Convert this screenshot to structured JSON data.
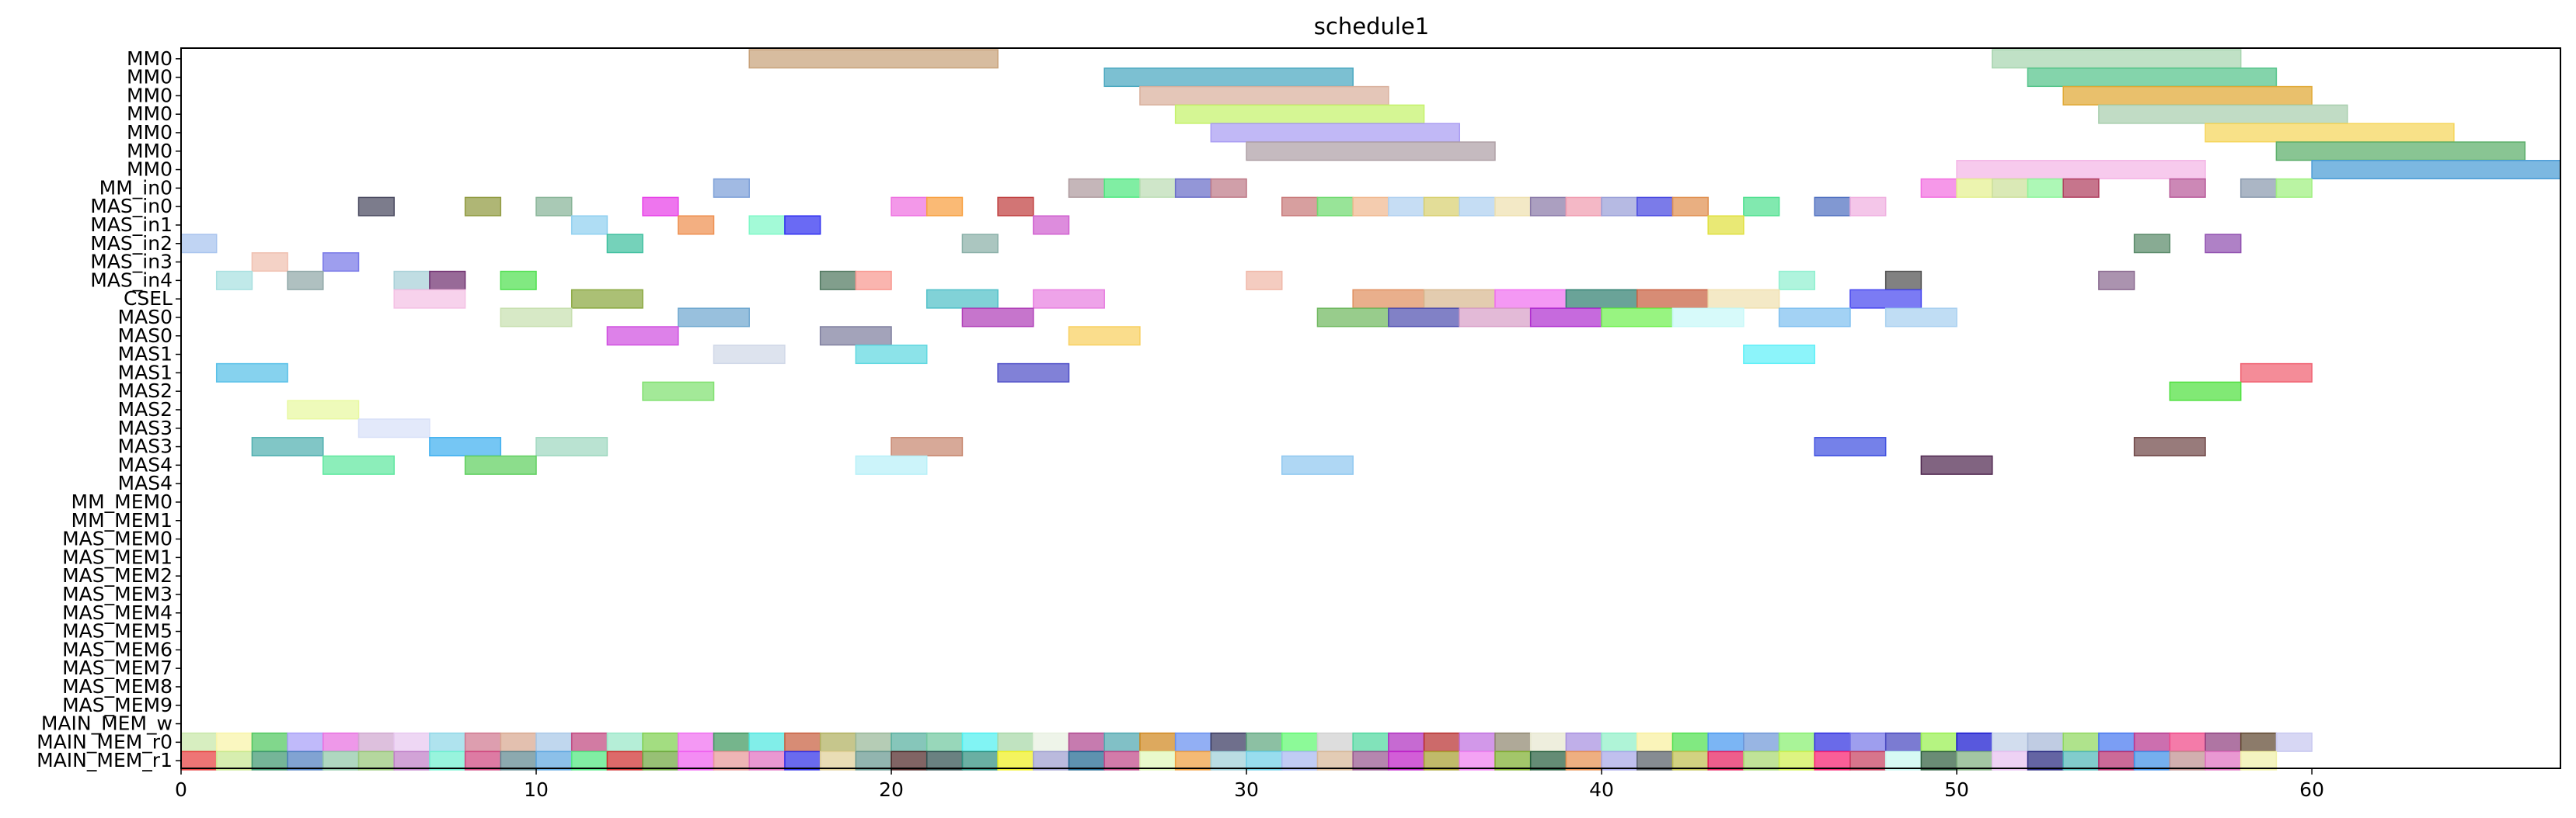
{
  "chart_data": {
    "type": "gantt",
    "title": "schedule1",
    "xlim": [
      0,
      67
    ],
    "xticks": [
      0,
      10,
      20,
      30,
      40,
      50,
      60
    ],
    "lanes": [
      "MM0",
      "MM0",
      "MM0",
      "MM0",
      "MM0",
      "MM0",
      "MM0",
      "MM_in0",
      "MAS_in0",
      "MAS_in1",
      "MAS_in2",
      "MAS_in3",
      "MAS_in4",
      "CSEL",
      "MAS0",
      "MAS0",
      "MAS1",
      "MAS1",
      "MAS2",
      "MAS2",
      "MAS3",
      "MAS3",
      "MAS4",
      "MAS4",
      "MM_MEM0",
      "MM_MEM1",
      "MAS_MEM0",
      "MAS_MEM1",
      "MAS_MEM2",
      "MAS_MEM3",
      "MAS_MEM4",
      "MAS_MEM5",
      "MAS_MEM6",
      "MAS_MEM7",
      "MAS_MEM8",
      "MAS_MEM9",
      "MAIN_MEM_w",
      "MAIN_MEM_r0",
      "MAIN_MEM_r1"
    ],
    "tasks": [
      [
        0,
        16,
        23,
        "#C8A27A"
      ],
      [
        0,
        51,
        58,
        "#A8D5B0"
      ],
      [
        1,
        26,
        33,
        "#4AA8C0"
      ],
      [
        1,
        52,
        59,
        "#55C48A"
      ],
      [
        2,
        27,
        34,
        "#D9B09C"
      ],
      [
        2,
        53,
        60,
        "#E0A833"
      ],
      [
        3,
        28,
        35,
        "#C5F26B"
      ],
      [
        3,
        54,
        61,
        "#A9CFAE"
      ],
      [
        4,
        29,
        36,
        "#A99CF2"
      ],
      [
        4,
        57,
        64,
        "#F5D55A"
      ],
      [
        5,
        30,
        37,
        "#AFA0A6"
      ],
      [
        5,
        59,
        66,
        "#5BAE6A"
      ],
      [
        6,
        50,
        57,
        "#F4B5E6"
      ],
      [
        6,
        60,
        67,
        "#4A9CD6"
      ],
      [
        7,
        15,
        16,
        "#7DA0D8"
      ],
      [
        7,
        25,
        26,
        "#AE9A9E"
      ],
      [
        7,
        26,
        27,
        "#4FE880"
      ],
      [
        7,
        27,
        28,
        "#BCDDB4"
      ],
      [
        7,
        28,
        29,
        "#6A6EC8"
      ],
      [
        7,
        29,
        30,
        "#BE7A88"
      ],
      [
        7,
        49,
        50,
        "#F270E0"
      ],
      [
        7,
        50,
        51,
        "#E4F090"
      ],
      [
        7,
        51,
        52,
        "#CCE09A"
      ],
      [
        7,
        52,
        53,
        "#8EF59A"
      ],
      [
        7,
        53,
        54,
        "#B04060"
      ],
      [
        7,
        56,
        57,
        "#B85A9A"
      ],
      [
        7,
        58,
        59,
        "#8A9AAE"
      ],
      [
        7,
        59,
        60,
        "#A0F080"
      ],
      [
        8,
        5,
        6,
        "#4A4A60"
      ],
      [
        8,
        8,
        9,
        "#909A40"
      ],
      [
        8,
        10,
        11,
        "#88B498"
      ],
      [
        8,
        13,
        14,
        "#E840E8"
      ],
      [
        8,
        20,
        21,
        "#EE70E0"
      ],
      [
        8,
        21,
        22,
        "#F8A040"
      ],
      [
        8,
        23,
        24,
        "#C04040"
      ],
      [
        8,
        31,
        32,
        "#C87A7A"
      ],
      [
        8,
        32,
        33,
        "#70DA70"
      ],
      [
        8,
        33,
        34,
        "#F0B890"
      ],
      [
        8,
        34,
        35,
        "#B0D0F0"
      ],
      [
        8,
        35,
        36,
        "#D8D070"
      ],
      [
        8,
        36,
        37,
        "#AED0F0"
      ],
      [
        8,
        37,
        38,
        "#EEE0B0"
      ],
      [
        8,
        38,
        39,
        "#8A7AA8"
      ],
      [
        8,
        39,
        40,
        "#F09CB0"
      ],
      [
        8,
        40,
        41,
        "#9AA0D8"
      ],
      [
        8,
        41,
        42,
        "#4848E0"
      ],
      [
        8,
        42,
        43,
        "#E09050"
      ],
      [
        8,
        44,
        45,
        "#50E090"
      ],
      [
        8,
        46,
        47,
        "#5070C0"
      ],
      [
        8,
        47,
        48,
        "#F0B0E0"
      ],
      [
        9,
        11,
        12,
        "#90D0F0"
      ],
      [
        9,
        14,
        15,
        "#EE9050"
      ],
      [
        9,
        16,
        17,
        "#80F8C8"
      ],
      [
        9,
        17,
        18,
        "#3030F0"
      ],
      [
        9,
        24,
        25,
        "#D060D0"
      ],
      [
        9,
        43,
        44,
        "#E0E040"
      ],
      [
        10,
        0,
        1,
        "#A8C4EE"
      ],
      [
        10,
        12,
        13,
        "#40C0A0"
      ],
      [
        10,
        22,
        23,
        "#8AB0A8"
      ],
      [
        10,
        55,
        56,
        "#5A8A6A"
      ],
      [
        10,
        57,
        58,
        "#9050B0"
      ],
      [
        11,
        2,
        3,
        "#F0C0B0"
      ],
      [
        11,
        4,
        5,
        "#7878E8"
      ],
      [
        12,
        1,
        2,
        "#A8E0E0"
      ],
      [
        12,
        3,
        4,
        "#90A8A8"
      ],
      [
        12,
        6,
        7,
        "#A8D0D8"
      ],
      [
        12,
        7,
        8,
        "#703070"
      ],
      [
        12,
        9,
        10,
        "#50E050"
      ],
      [
        12,
        18,
        19,
        "#507860"
      ],
      [
        12,
        19,
        20,
        "#F89890"
      ],
      [
        12,
        30,
        31,
        "#F0B8A8"
      ],
      [
        12,
        45,
        46,
        "#90F0D0"
      ],
      [
        12,
        48,
        49,
        "#505050"
      ],
      [
        12,
        54,
        55,
        "#8A6A90"
      ],
      [
        13,
        6,
        8,
        "#F4C0E4"
      ],
      [
        13,
        11,
        13,
        "#8AA840"
      ],
      [
        13,
        21,
        23,
        "#50C0C8"
      ],
      [
        13,
        24,
        26,
        "#E880E0"
      ],
      [
        13,
        33,
        35,
        "#E09060"
      ],
      [
        13,
        35,
        37,
        "#D8B890"
      ],
      [
        13,
        37,
        39,
        "#F070F0"
      ],
      [
        13,
        39,
        41,
        "#308070"
      ],
      [
        13,
        41,
        43,
        "#C86040"
      ],
      [
        13,
        43,
        45,
        "#F0E0B0"
      ],
      [
        13,
        47,
        49,
        "#4848F0"
      ],
      [
        14,
        9,
        11,
        "#C8E0B0"
      ],
      [
        14,
        14,
        16,
        "#70A8D0"
      ],
      [
        14,
        22,
        24,
        "#B040B8"
      ],
      [
        14,
        32,
        34,
        "#70B860"
      ],
      [
        14,
        34,
        36,
        "#5050B0"
      ],
      [
        14,
        36,
        38,
        "#D8A0C8"
      ],
      [
        14,
        38,
        40,
        "#B030D0"
      ],
      [
        14,
        40,
        42,
        "#70F050"
      ],
      [
        14,
        42,
        44,
        "#C8F8F8"
      ],
      [
        14,
        45,
        47,
        "#80C0F0"
      ],
      [
        14,
        48,
        50,
        "#A8D0F0"
      ],
      [
        15,
        12,
        14,
        "#D050E0"
      ],
      [
        15,
        18,
        20,
        "#8080A0"
      ],
      [
        15,
        25,
        27,
        "#F8D060"
      ],
      [
        16,
        15,
        17,
        "#D0D8E8"
      ],
      [
        16,
        19,
        21,
        "#60D8E0"
      ],
      [
        16,
        44,
        46,
        "#60F0F8"
      ],
      [
        17,
        1,
        3,
        "#58C0E8"
      ],
      [
        17,
        23,
        25,
        "#5050C8"
      ],
      [
        17,
        58,
        60,
        "#F06070"
      ],
      [
        18,
        13,
        15,
        "#80E070"
      ],
      [
        18,
        56,
        58,
        "#50E040"
      ],
      [
        19,
        3,
        5,
        "#E8F8A0"
      ],
      [
        20,
        5,
        7,
        "#D8E0F8"
      ],
      [
        21,
        2,
        4,
        "#50B0B0"
      ],
      [
        21,
        7,
        9,
        "#40B0F0"
      ],
      [
        21,
        10,
        12,
        "#A0D8C0"
      ],
      [
        21,
        20,
        22,
        "#C88870"
      ],
      [
        21,
        46,
        48,
        "#4050E0"
      ],
      [
        21,
        55,
        57,
        "#704848"
      ],
      [
        22,
        4,
        6,
        "#60E8A0"
      ],
      [
        22,
        8,
        10,
        "#60D060"
      ],
      [
        22,
        19,
        21,
        "#B8F0F8"
      ],
      [
        22,
        31,
        33,
        "#90C8F0"
      ],
      [
        22,
        49,
        51,
        "#502850"
      ],
      [
        37,
        0,
        1,
        "#C8E8A8"
      ],
      [
        37,
        1,
        2,
        "#F8F4A8"
      ],
      [
        37,
        2,
        3,
        "#50C860"
      ],
      [
        37,
        3,
        4,
        "#A8A0F8"
      ],
      [
        37,
        4,
        5,
        "#E870E0"
      ],
      [
        37,
        5,
        6,
        "#D0A8D0"
      ],
      [
        37,
        6,
        7,
        "#E8C8F0"
      ],
      [
        37,
        7,
        8,
        "#90D8E8"
      ],
      [
        37,
        8,
        9,
        "#D07890"
      ],
      [
        37,
        9,
        10,
        "#D8A890"
      ],
      [
        37,
        10,
        11,
        "#A8C8E8"
      ],
      [
        37,
        11,
        12,
        "#C04880"
      ],
      [
        37,
        12,
        13,
        "#98E8C8"
      ],
      [
        37,
        13,
        14,
        "#80D050"
      ],
      [
        37,
        14,
        15,
        "#F070F0"
      ],
      [
        37,
        15,
        16,
        "#409860"
      ],
      [
        37,
        16,
        17,
        "#50E8E0"
      ],
      [
        37,
        17,
        18,
        "#C86040"
      ],
      [
        37,
        18,
        19,
        "#B0B060"
      ],
      [
        37,
        19,
        20,
        "#98B898"
      ],
      [
        37,
        20,
        21,
        "#58B0A0"
      ],
      [
        37,
        21,
        22,
        "#70C8A0"
      ],
      [
        37,
        22,
        23,
        "#50F0F0"
      ],
      [
        37,
        23,
        24,
        "#A8D8A8"
      ],
      [
        37,
        24,
        25,
        "#E8F0E0"
      ],
      [
        37,
        25,
        26,
        "#B04890"
      ],
      [
        37,
        26,
        27,
        "#50A8B0"
      ],
      [
        37,
        27,
        28,
        "#D08820"
      ],
      [
        37,
        28,
        29,
        "#6890F0"
      ],
      [
        37,
        29,
        30,
        "#383860"
      ],
      [
        37,
        30,
        31,
        "#60A880"
      ],
      [
        37,
        31,
        32,
        "#60F870"
      ],
      [
        37,
        32,
        33,
        "#D0D0D0"
      ],
      [
        37,
        33,
        34,
        "#50D8A0"
      ],
      [
        37,
        34,
        35,
        "#B030C0"
      ],
      [
        37,
        35,
        36,
        "#B83030"
      ],
      [
        37,
        36,
        37,
        "#C070E0"
      ],
      [
        37,
        37,
        38,
        "#908870"
      ],
      [
        37,
        38,
        39,
        "#E8E8D0"
      ],
      [
        37,
        39,
        40,
        "#A890E0"
      ],
      [
        37,
        40,
        41,
        "#90F0C8"
      ],
      [
        37,
        41,
        42,
        "#F8F0A0"
      ],
      [
        37,
        42,
        43,
        "#50E050"
      ],
      [
        37,
        43,
        44,
        "#4898F0"
      ],
      [
        37,
        44,
        45,
        "#7098D8"
      ],
      [
        37,
        45,
        46,
        "#88F070"
      ],
      [
        37,
        46,
        47,
        "#3030E0"
      ],
      [
        37,
        47,
        48,
        "#7878E8"
      ],
      [
        37,
        48,
        49,
        "#4848C0"
      ],
      [
        37,
        49,
        50,
        "#98F050"
      ],
      [
        37,
        50,
        51,
        "#1818D0"
      ],
      [
        37,
        51,
        52,
        "#C0D0E8"
      ],
      [
        37,
        52,
        53,
        "#A8B8D8"
      ],
      [
        37,
        53,
        54,
        "#90D860"
      ],
      [
        37,
        54,
        55,
        "#4878F0"
      ],
      [
        37,
        55,
        56,
        "#B83890"
      ],
      [
        37,
        56,
        57,
        "#F04888"
      ],
      [
        37,
        57,
        58,
        "#904080"
      ],
      [
        37,
        58,
        59,
        "#604830"
      ],
      [
        37,
        59,
        60,
        "#C8C8F0"
      ],
      [
        38,
        0,
        1,
        "#E84040"
      ],
      [
        38,
        1,
        2,
        "#C8E890"
      ],
      [
        38,
        2,
        3,
        "#409870"
      ],
      [
        38,
        3,
        4,
        "#5080C0"
      ],
      [
        38,
        4,
        5,
        "#90C8A8"
      ],
      [
        38,
        5,
        6,
        "#98C878"
      ],
      [
        38,
        6,
        7,
        "#C080C8"
      ],
      [
        38,
        7,
        8,
        "#70F0D0"
      ],
      [
        38,
        8,
        9,
        "#D04880"
      ],
      [
        38,
        9,
        10,
        "#608890"
      ],
      [
        38,
        10,
        11,
        "#60A8E0"
      ],
      [
        38,
        11,
        12,
        "#50E880"
      ],
      [
        38,
        12,
        13,
        "#D03030"
      ],
      [
        38,
        13,
        14,
        "#70A840"
      ],
      [
        38,
        14,
        15,
        "#F060F0"
      ],
      [
        38,
        15,
        16,
        "#E89898"
      ],
      [
        38,
        16,
        17,
        "#E070C0"
      ],
      [
        38,
        17,
        18,
        "#3030E8"
      ],
      [
        38,
        18,
        19,
        "#E0D098"
      ],
      [
        38,
        19,
        20,
        "#689890"
      ],
      [
        38,
        20,
        21,
        "#502828"
      ],
      [
        38,
        21,
        22,
        "#305050"
      ],
      [
        38,
        22,
        23,
        "#309080"
      ],
      [
        38,
        23,
        24,
        "#F0F020"
      ],
      [
        38,
        24,
        25,
        "#A0A0D0"
      ],
      [
        38,
        25,
        26,
        "#206890"
      ],
      [
        38,
        26,
        27,
        "#C04888"
      ],
      [
        38,
        27,
        28,
        "#E0F8B8"
      ],
      [
        38,
        28,
        29,
        "#F0A040"
      ],
      [
        38,
        29,
        30,
        "#A0D0D8"
      ],
      [
        38,
        30,
        31,
        "#70D0E8"
      ],
      [
        38,
        31,
        32,
        "#A8B8F0"
      ],
      [
        38,
        32,
        33,
        "#D8B898"
      ],
      [
        38,
        33,
        34,
        "#985890"
      ],
      [
        38,
        34,
        35,
        "#C020C8"
      ],
      [
        38,
        35,
        36,
        "#A8A030"
      ],
      [
        38,
        36,
        37,
        "#F080F0"
      ],
      [
        38,
        37,
        38,
        "#80B030"
      ],
      [
        38,
        38,
        39,
        "#286040"
      ],
      [
        38,
        39,
        40,
        "#E89050"
      ],
      [
        38,
        40,
        41,
        "#A8A8E8"
      ],
      [
        38,
        41,
        42,
        "#586068"
      ],
      [
        38,
        42,
        43,
        "#C0C050"
      ],
      [
        38,
        43,
        44,
        "#E82060"
      ],
      [
        38,
        44,
        45,
        "#A8D870"
      ],
      [
        38,
        45,
        46,
        "#D0F050"
      ],
      [
        38,
        46,
        47,
        "#F82070"
      ],
      [
        38,
        47,
        48,
        "#C84060"
      ],
      [
        38,
        48,
        49,
        "#C8F8F0"
      ],
      [
        38,
        49,
        50,
        "#306040"
      ],
      [
        38,
        50,
        51,
        "#80B080"
      ],
      [
        38,
        51,
        52,
        "#E8C0F0"
      ],
      [
        38,
        52,
        53,
        "#282880"
      ],
      [
        38,
        53,
        54,
        "#50B8B8"
      ],
      [
        38,
        54,
        55,
        "#B83070"
      ],
      [
        38,
        55,
        56,
        "#4090E8"
      ],
      [
        38,
        56,
        57,
        "#C09090"
      ],
      [
        38,
        57,
        58,
        "#E070C0"
      ],
      [
        38,
        58,
        59,
        "#F0F0A8"
      ]
    ]
  }
}
